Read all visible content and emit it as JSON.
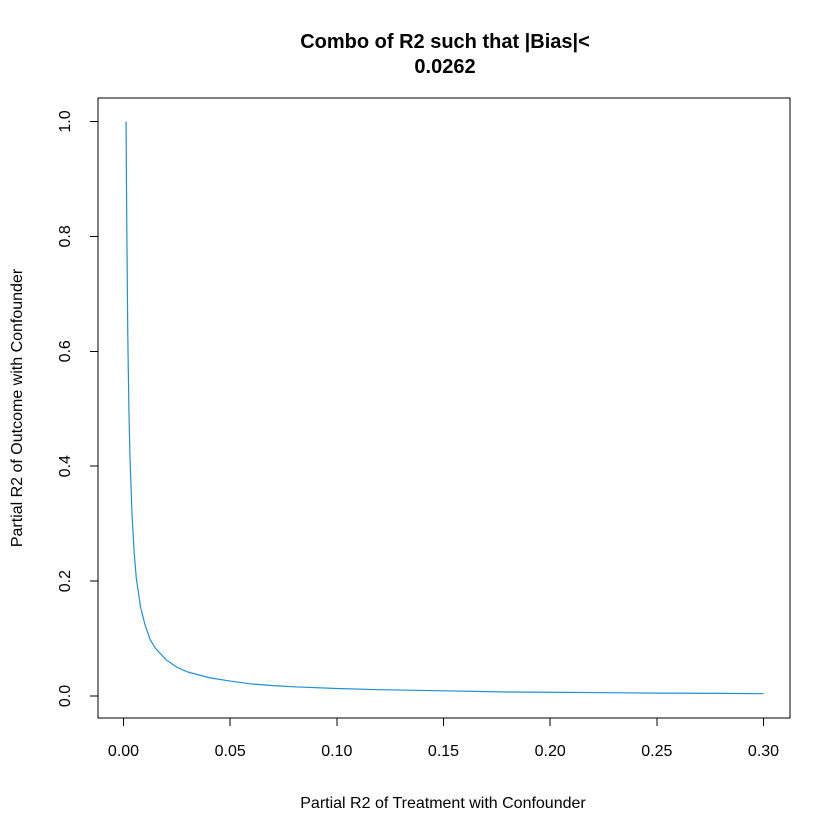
{
  "chart_data": {
    "type": "line",
    "title": [
      "Combo of R2 such that |Bias|<",
      "0.0262"
    ],
    "xlabel": "Partial R2 of Treatment with Confounder",
    "ylabel": "Partial R2 of Outcome with Confounder",
    "xlim": [
      0,
      0.3
    ],
    "ylim": [
      0,
      1
    ],
    "x_ticks": [
      0.0,
      0.05,
      0.1,
      0.15,
      0.2,
      0.25,
      0.3
    ],
    "x_tick_labels": [
      "0.00",
      "0.05",
      "0.10",
      "0.15",
      "0.20",
      "0.25",
      "0.30"
    ],
    "y_ticks": [
      0.0,
      0.2,
      0.4,
      0.6,
      0.8,
      1.0
    ],
    "y_tick_labels": [
      "0.0",
      "0.2",
      "0.4",
      "0.6",
      "0.8",
      "1.0"
    ],
    "grid": false,
    "series": [
      {
        "color": "#1f8fd6",
        "x": [
          0.0012,
          0.0015,
          0.002,
          0.0025,
          0.003,
          0.004,
          0.005,
          0.006,
          0.008,
          0.01,
          0.0125,
          0.015,
          0.02,
          0.025,
          0.03,
          0.04,
          0.05,
          0.06,
          0.07,
          0.08,
          0.1,
          0.12,
          0.15,
          0.18,
          0.2,
          0.22,
          0.25,
          0.28,
          0.3
        ],
        "y": [
          1.0,
          0.835,
          0.63,
          0.505,
          0.42,
          0.315,
          0.25,
          0.205,
          0.155,
          0.125,
          0.098,
          0.083,
          0.063,
          0.05,
          0.042,
          0.032,
          0.026,
          0.021,
          0.018,
          0.016,
          0.013,
          0.011,
          0.009,
          0.007,
          0.0065,
          0.006,
          0.005,
          0.0045,
          0.004
        ]
      }
    ]
  }
}
